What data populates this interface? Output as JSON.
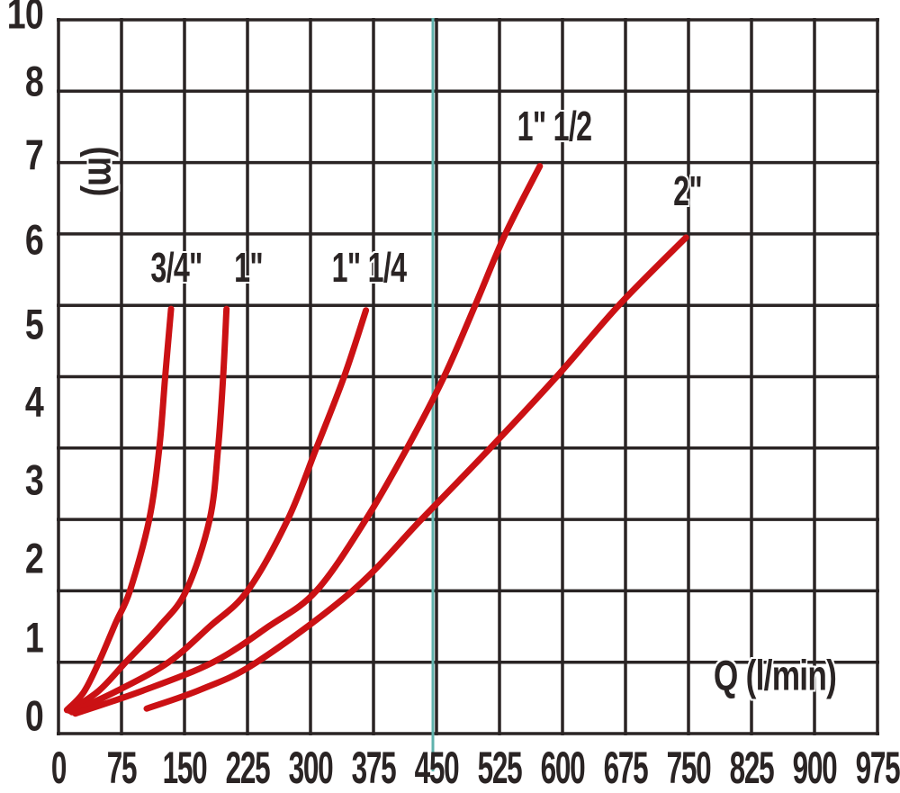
{
  "colors": {
    "background": "#ffffff",
    "grid": "#2a2424",
    "text": "#2a2424",
    "curve_red": "#cb1114",
    "reference_line_teal": "#5fb2ac"
  },
  "y_axis": {
    "unit_label": "(m)",
    "ticks": [
      "10",
      "8",
      "7",
      "6",
      "5",
      "4",
      "3",
      "2",
      "1",
      "0"
    ],
    "note": "tick label 9 is absent on the printed axis"
  },
  "x_axis": {
    "title": "Q (l/min)",
    "ticks": [
      "0",
      "75",
      "150",
      "225",
      "300",
      "375",
      "450",
      "525",
      "600",
      "675",
      "750",
      "825",
      "900",
      "975"
    ]
  },
  "chart_data": {
    "type": "line",
    "title": "",
    "xlabel": "Q (l/min)",
    "ylabel": "(m)",
    "xlim": [
      0,
      975
    ],
    "ylim": [
      0,
      10
    ],
    "x_tick_step": 75,
    "grid": true,
    "legend_position": "labels-near-curves",
    "reference_line": {
      "axis": "x",
      "x_value": 450,
      "color": "teal"
    },
    "series": [
      {
        "name": "3/4\"",
        "points": [
          [
            10,
            0.33
          ],
          [
            30,
            0.58
          ],
          [
            48,
            1
          ],
          [
            68,
            1.55
          ],
          [
            85,
            2
          ],
          [
            108,
            3
          ],
          [
            120,
            4
          ],
          [
            127,
            5
          ],
          [
            134,
            5.95
          ]
        ]
      },
      {
        "name": "1\"",
        "points": [
          [
            13,
            0.32
          ],
          [
            48,
            0.6
          ],
          [
            80,
            1
          ],
          [
            120,
            1.5
          ],
          [
            152,
            2
          ],
          [
            180,
            3
          ],
          [
            190,
            4
          ],
          [
            196,
            5
          ],
          [
            200,
            5.95
          ]
        ]
      },
      {
        "name": "1\" 1/4",
        "points": [
          [
            16,
            0.3
          ],
          [
            70,
            0.6
          ],
          [
            131,
            1
          ],
          [
            180,
            1.5
          ],
          [
            225,
            2
          ],
          [
            273,
            3
          ],
          [
            307,
            4
          ],
          [
            340,
            5
          ],
          [
            366,
            5.93
          ]
        ]
      },
      {
        "name": "1\" 1/2",
        "points": [
          [
            20,
            0.28
          ],
          [
            100,
            0.6
          ],
          [
            184,
            1
          ],
          [
            250,
            1.5
          ],
          [
            307,
            2
          ],
          [
            366,
            3
          ],
          [
            415,
            4
          ],
          [
            459,
            5
          ],
          [
            496,
            6
          ],
          [
            532,
            7
          ],
          [
            573,
            7.95
          ]
        ]
      },
      {
        "name": "2\"",
        "points": [
          [
            105,
            0.35
          ],
          [
            170,
            0.62
          ],
          [
            236,
            1
          ],
          [
            350,
            2
          ],
          [
            432,
            3
          ],
          [
            514,
            4
          ],
          [
            593,
            5
          ],
          [
            667,
            6
          ],
          [
            747,
            6.95
          ]
        ]
      }
    ]
  }
}
